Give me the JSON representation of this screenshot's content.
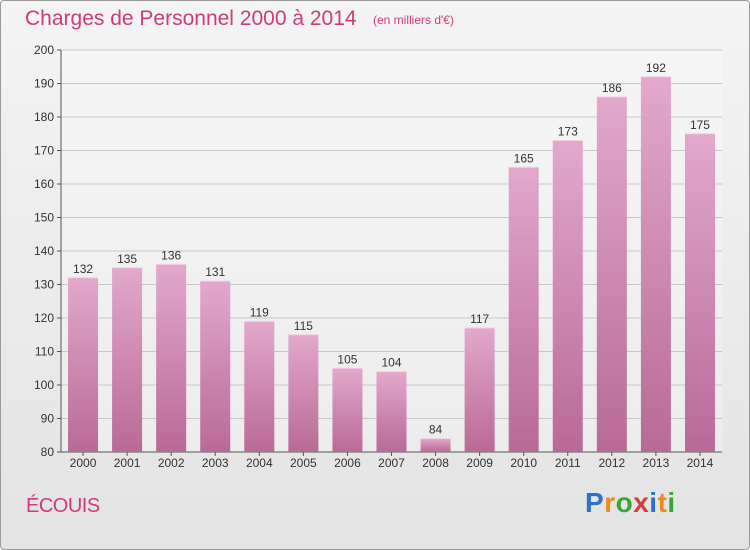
{
  "title": "Charges de Personnel 2000 à 2014",
  "subtitle": "(en milliers d'€)",
  "commune": "ÉCOUIS",
  "logo": {
    "letters": [
      "P",
      "r",
      "o",
      "x",
      "i",
      "t",
      "i"
    ],
    "colors": [
      "#2f6fd1",
      "#f08a17",
      "#3aa63a",
      "#d93a3a",
      "#2f6fd1",
      "#f08a17",
      "#3aa63a"
    ]
  },
  "colors": {
    "title": "#d03a7a",
    "bar_light": "#e3a8cc",
    "bar_dark": "#b86a96",
    "grid": "#c8c8c8"
  },
  "chart_data": {
    "type": "bar",
    "title": "Charges de Personnel 2000 à 2014",
    "subtitle": "(en milliers d'€)",
    "categories": [
      "2000",
      "2001",
      "2002",
      "2003",
      "2004",
      "2005",
      "2006",
      "2007",
      "2008",
      "2009",
      "2010",
      "2011",
      "2012",
      "2013",
      "2014"
    ],
    "values": [
      132,
      135,
      136,
      131,
      119,
      115,
      105,
      104,
      84,
      117,
      165,
      173,
      186,
      192,
      175
    ],
    "ylim": [
      80,
      200
    ],
    "yticks": [
      80,
      90,
      100,
      110,
      120,
      130,
      140,
      150,
      160,
      170,
      180,
      190,
      200
    ],
    "grid": true
  }
}
